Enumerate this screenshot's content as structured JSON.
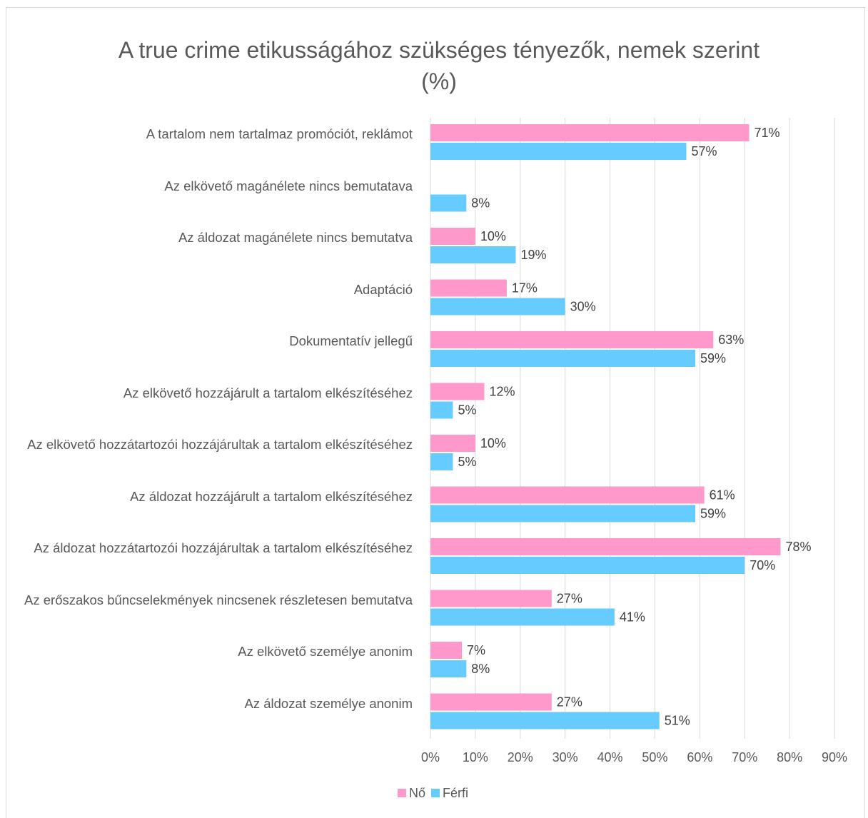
{
  "chart_data": {
    "type": "bar",
    "orientation": "horizontal",
    "title": "A true crime etikusságához szükséges tényezők, nemek szerint (%)",
    "categories": [
      "A tartalom nem tartalmaz promóciót, reklámot",
      "Az elkövető magánélete nincs bemutatava",
      "Az áldozat magánélete nincs bemutatva",
      "Adaptáció",
      "Dokumentatív jellegű",
      "Az elkövető hozzájárult a tartalom elkészítéséhez",
      "Az elkövető hozzátartozói hozzájárultak a tartalom elkészítéséhez",
      "Az áldozat hozzájárult a tartalom elkészítéséhez",
      "Az áldozat hozzátartozói hozzájárultak a tartalom elkészítéséhez",
      "Az erőszakos bűncselekmények nincsenek részletesen bemutatva",
      "Az elkövető személye anonim",
      "Az áldozat személye anonim"
    ],
    "series": [
      {
        "name": "Nő",
        "color": "#ff99cc",
        "values": [
          71,
          null,
          10,
          17,
          63,
          12,
          10,
          61,
          78,
          27,
          7,
          27
        ],
        "value_labels": [
          "71%",
          null,
          "10%",
          "17%",
          "63%",
          "12%",
          "10%",
          "61%",
          "78%",
          "27%",
          "7%",
          "27%"
        ]
      },
      {
        "name": "Férfi",
        "color": "#66ccff",
        "values": [
          57,
          8,
          19,
          30,
          59,
          5,
          5,
          59,
          70,
          41,
          8,
          51
        ],
        "value_labels": [
          "57%",
          "8%",
          "19%",
          "30%",
          "59%",
          "5%",
          "5%",
          "59%",
          "70%",
          "41%",
          "8%",
          "51%"
        ]
      }
    ],
    "xlim": [
      0,
      90
    ],
    "xticks": [
      {
        "value": 0,
        "label": "0%"
      },
      {
        "value": 10,
        "label": "10%"
      },
      {
        "value": 20,
        "label": "20%"
      },
      {
        "value": 30,
        "label": "30%"
      },
      {
        "value": 40,
        "label": "40%"
      },
      {
        "value": 50,
        "label": "50%"
      },
      {
        "value": 60,
        "label": "60%"
      },
      {
        "value": 70,
        "label": "70%"
      },
      {
        "value": 80,
        "label": "80%"
      },
      {
        "value": 90,
        "label": "90%"
      }
    ],
    "grid": true,
    "legend": "bottom"
  }
}
